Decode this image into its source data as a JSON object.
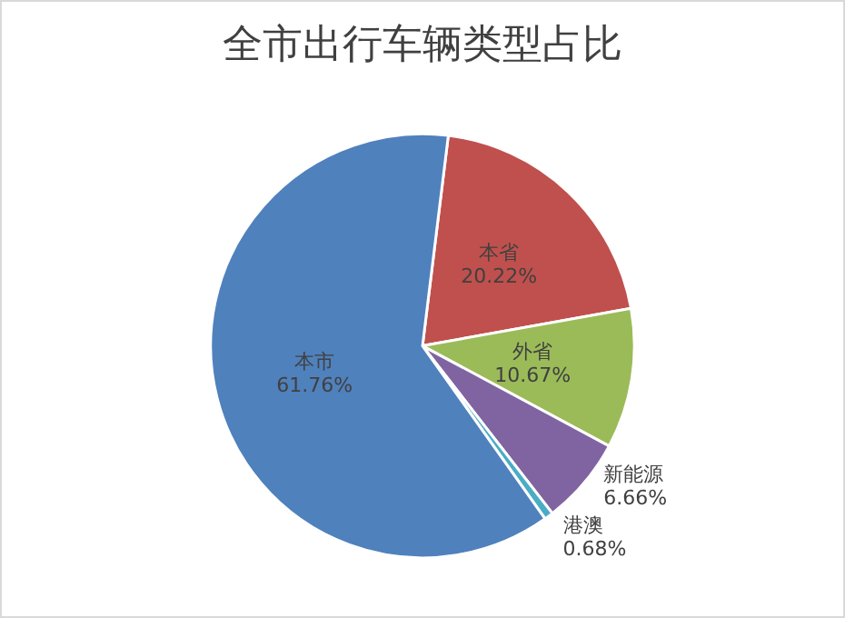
{
  "chart_data": {
    "type": "pie",
    "title": "全市出行车辆类型占比",
    "categories": [
      "本省",
      "外省",
      "新能源",
      "港澳",
      "本市"
    ],
    "values": [
      20.22,
      10.67,
      6.66,
      0.68,
      61.76
    ],
    "value_labels": [
      "20.22%",
      "10.67%",
      "6.66%",
      "0.68%",
      "61.76%"
    ],
    "colors": [
      "#c0504d",
      "#9bbb59",
      "#8064a2",
      "#4bacc6",
      "#4f81bd"
    ],
    "legend": false
  }
}
